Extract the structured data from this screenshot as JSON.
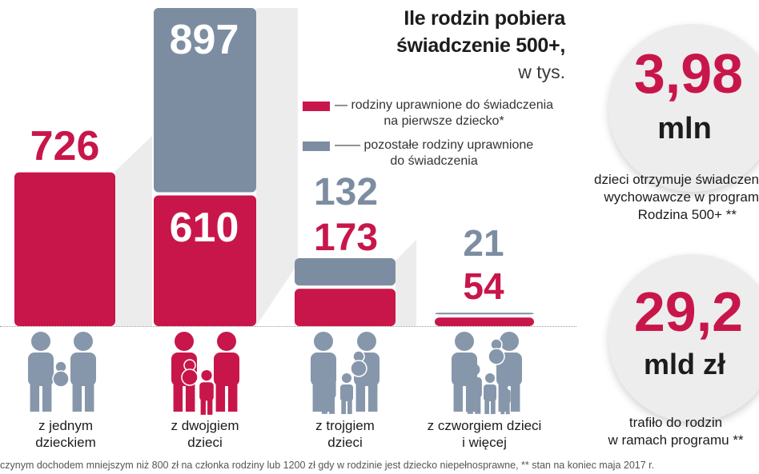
{
  "title": {
    "line1": "Ile rodzin pobiera",
    "line2": "świadczenie 500+,",
    "line3": "w tys."
  },
  "legend": [
    {
      "label_l1": "— rodziny uprawnione do świadczenia",
      "label_l2": "na pierwsze dziecko*",
      "color": "#c8164a"
    },
    {
      "label_l1": "—— pozostałe rodziny uprawnione",
      "label_l2": "do świadczenia",
      "color": "#7d8da1"
    }
  ],
  "chart_data": {
    "type": "bar",
    "stacked": true,
    "categories": [
      "z jednym dzieckiem",
      "z dwojgiem dzieci",
      "z trojgiem dzieci",
      "z czworgiem dzieci i więcej"
    ],
    "series": [
      {
        "name": "rodziny uprawnione do świadczenia na pierwsze dziecko*",
        "color": "#c8164a",
        "values": [
          726,
          610,
          173,
          54
        ]
      },
      {
        "name": "pozostałe rodziny uprawnione do świadczenia",
        "color": "#7d8da1",
        "values": [
          0,
          897,
          132,
          21
        ]
      }
    ],
    "unit": "w tys."
  },
  "categories_display": [
    {
      "l1": "z jednym",
      "l2": "dzieckiem"
    },
    {
      "l1": "z dwojgiem",
      "l2": "dzieci"
    },
    {
      "l1": "z trojgiem",
      "l2": "dzieci"
    },
    {
      "l1": "z czworgiem dzieci",
      "l2": "i więcej"
    }
  ],
  "stats": [
    {
      "value": "3,98",
      "unit": "mln",
      "desc": [
        "dzieci otrzymuje świadczen",
        "wychowawcze w program",
        "Rodzina 500+ **"
      ]
    },
    {
      "value": "29,2",
      "unit": "mld zł",
      "desc": [
        "trafiło do rodzin",
        "w ramach programu **"
      ]
    }
  ],
  "footnote": "czynym dochodem mniejszym niż 800 zł  na członka rodziny lub 1200 zł gdy w rodzinie jest dziecko niepełnosprawne, ** stan na koniec maja 2017 r.",
  "colors": {
    "accent": "#c8164a",
    "secondary": "#7d8da1",
    "icon_pink": "#c8164a",
    "icon_gray": "#8797ab"
  }
}
